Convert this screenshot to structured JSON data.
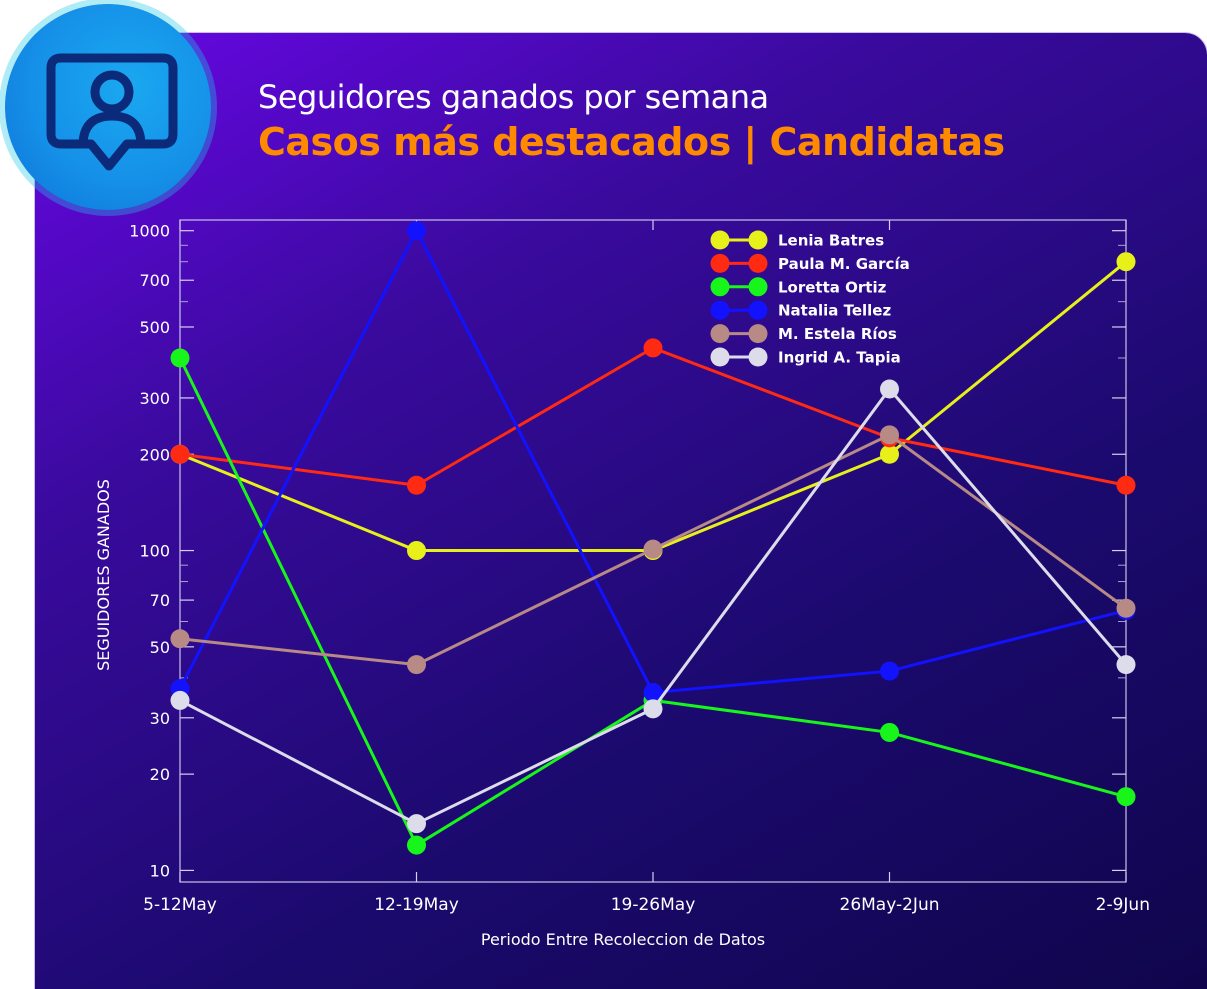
{
  "header": {
    "title": "Seguidores ganados por semana",
    "subtitle": "Casos más destacados | Candidatas",
    "icon": "user-message-icon"
  },
  "colors": {
    "background_top": "#6a07e8",
    "background_bottom": "#10054c",
    "subtitle": "#ff8a00",
    "badge": "#1590e8"
  },
  "chart_data": {
    "type": "line",
    "title": "Seguidores ganados por semana",
    "xlabel": "Periodo Entre Recoleccion de Datos",
    "ylabel": "SEGUIDORES GANADOS",
    "yscale": "log",
    "ylim": [
      9.2,
      1080
    ],
    "yticks": [
      10,
      20,
      30,
      50,
      70,
      100,
      200,
      300,
      500,
      700,
      1000
    ],
    "categories": [
      "5-12May",
      "12-19May",
      "19-26May",
      "26May-2Jun",
      "2-9Jun"
    ],
    "grid": false,
    "legend": "top-right",
    "series": [
      {
        "name": "Lenia Batres",
        "color": "#e8f01a",
        "values": [
          200,
          100,
          100,
          200,
          800
        ]
      },
      {
        "name": "Paula M. García",
        "color": "#ff2a12",
        "values": [
          200,
          160,
          430,
          225,
          160
        ]
      },
      {
        "name": "Loretta Ortiz",
        "color": "#17f51a",
        "values": [
          400,
          12,
          34,
          27,
          17
        ]
      },
      {
        "name": "Natalia Tellez",
        "color": "#1212ff",
        "values": [
          37,
          1000,
          36,
          42,
          65
        ]
      },
      {
        "name": "M. Estela Ríos",
        "color": "#b88a86",
        "values": [
          53,
          44,
          101,
          230,
          66
        ]
      },
      {
        "name": "Ingrid A. Tapia",
        "color": "#dcdcea",
        "values": [
          34,
          14,
          32,
          320,
          44
        ]
      }
    ]
  }
}
